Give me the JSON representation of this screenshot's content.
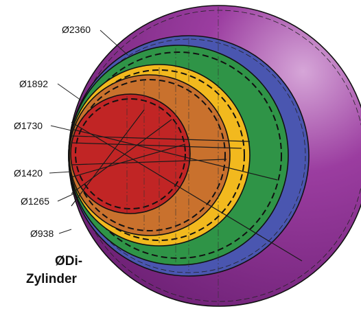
{
  "diagram": {
    "caption_line1": "ØDi-",
    "caption_line2": "Zylinder",
    "rings": [
      {
        "label": "Ø2360",
        "color": "#8a2f8f"
      },
      {
        "label": "Ø1892",
        "color": "#4a56b0"
      },
      {
        "label": "Ø1730",
        "color": "#2f9447"
      },
      {
        "label": "Ø1420",
        "color": "#f2b91e"
      },
      {
        "label": "Ø1265",
        "color": "#c9712d"
      },
      {
        "label": "Ø938",
        "color": "#c12525"
      }
    ]
  }
}
